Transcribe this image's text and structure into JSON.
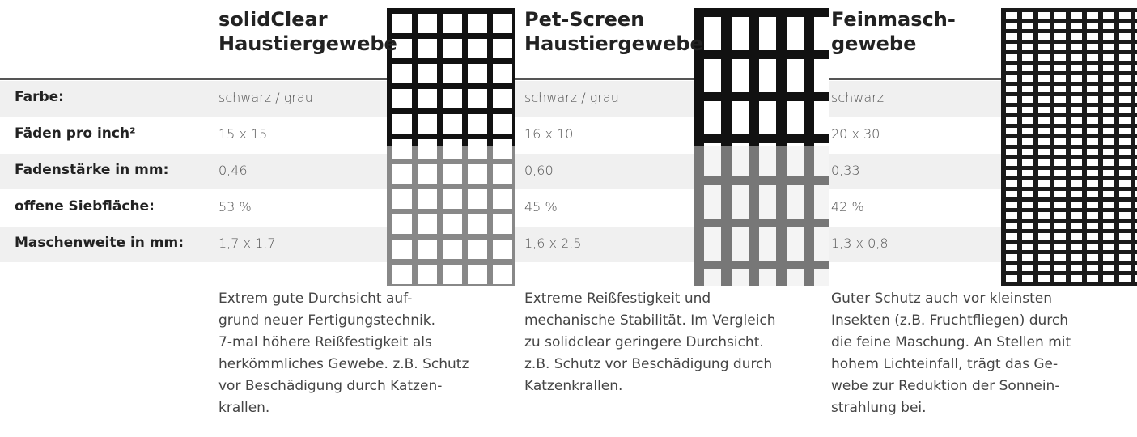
{
  "labels": [
    "Farbe:",
    "Fäden pro inch²",
    "Fadenstärke in mm:",
    "offene Siebfläche:",
    "Maschenweite in mm:"
  ],
  "products": [
    {
      "title": [
        "solidClear",
        "Haustiergewebe"
      ],
      "values": [
        "schwarz / grau",
        "15 x 15",
        "0,46",
        "53 %",
        "1,7 x 1,7"
      ],
      "description": [
        "Extrem gute Durchsicht auf-",
        "grund neuer Fertigungstechnik.",
        "7-mal höhere Reißfestigkeit als",
        "herkömmliches Gewebe. z.B. Schutz",
        "vor Beschädigung durch Katzen-",
        "krallen."
      ]
    },
    {
      "title": [
        "Pet-Screen",
        "Haustiergewebe"
      ],
      "values": [
        "schwarz / grau",
        "16 x 10",
        "0,60",
        "45 %",
        "1,6 x 2,5"
      ],
      "description": [
        "Extreme Reißfestigkeit und",
        "mechanische Stabilität. Im Vergleich",
        "zu solidclear geringere Durchsicht.",
        "z.B. Schutz vor Beschädigung durch",
        "Katzenkrallen."
      ]
    },
    {
      "title": [
        "Feinmasch-",
        "gewebe"
      ],
      "values": [
        "schwarz",
        "20 x 30",
        "0,33",
        "42 %",
        "1,3 x 0,8"
      ],
      "description": [
        "Guter Schutz auch vor kleinsten",
        "Insekten (z.B. Fruchtfliegen) durch",
        "die feine Maschung. An Stellen mit",
        "hohem Lichteinfall, trägt das Ge-",
        "webe zur Reduktion der Sonnein-",
        "strahlung bei."
      ]
    }
  ]
}
